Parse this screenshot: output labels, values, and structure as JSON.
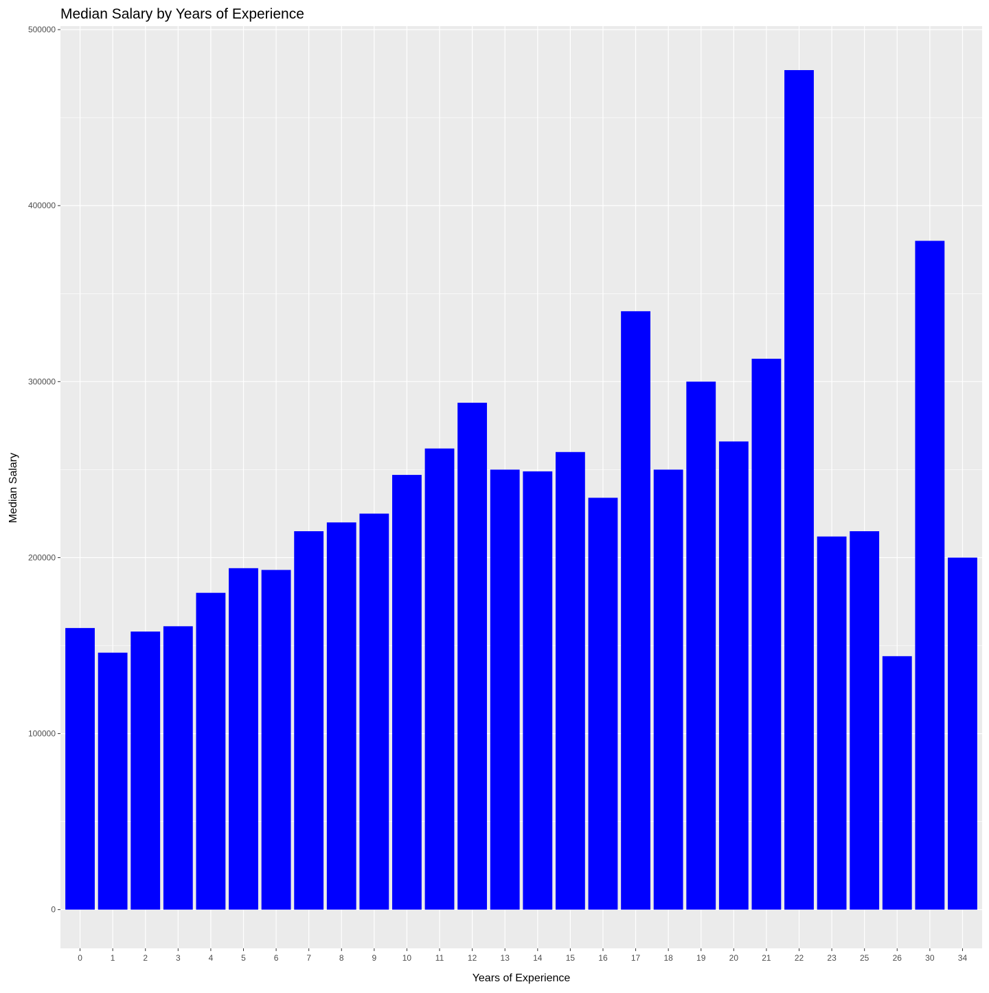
{
  "chart_data": {
    "type": "bar",
    "title": "Median Salary by Years of Experience",
    "xlabel": "Years of Experience",
    "ylabel": "Median Salary",
    "categories": [
      "0",
      "1",
      "2",
      "3",
      "4",
      "5",
      "6",
      "7",
      "8",
      "9",
      "10",
      "11",
      "12",
      "13",
      "14",
      "15",
      "16",
      "17",
      "18",
      "19",
      "20",
      "21",
      "22",
      "23",
      "25",
      "26",
      "30",
      "34"
    ],
    "values": [
      160000,
      146000,
      158000,
      161000,
      180000,
      194000,
      193000,
      215000,
      220000,
      225000,
      247000,
      262000,
      288000,
      250000,
      249000,
      260000,
      234000,
      340000,
      250000,
      300000,
      266000,
      313000,
      477000,
      212000,
      215000,
      144000,
      380000,
      200000
    ],
    "ylim": [
      -22000,
      502000
    ],
    "yticks": [
      "0",
      "100000",
      "200000",
      "300000",
      "400000",
      "500000"
    ],
    "grid": true,
    "legend": "none",
    "colors": {
      "bar": "#0000ff",
      "panel": "#ebebeb",
      "grid": "#ffffff",
      "text": "#000000",
      "tick_text": "#4d4d4d",
      "tick": "#333333"
    }
  }
}
